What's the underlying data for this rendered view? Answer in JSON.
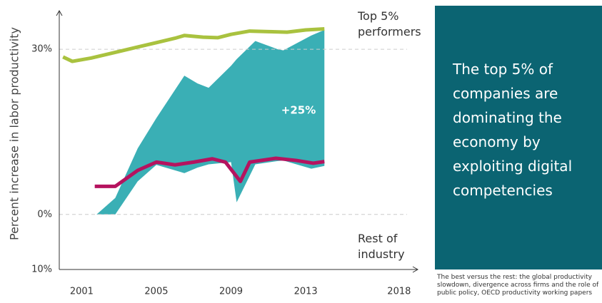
{
  "chart_data": {
    "type": "line",
    "y_label": "Percent increase in labor productivity",
    "xlim": [
      1999.8,
      2019
    ],
    "xticks": [
      2001,
      2005,
      2009,
      2013,
      2018
    ],
    "ylim": [
      -10,
      37
    ],
    "yticks": [
      {
        "value": 30,
        "label": "30%"
      },
      {
        "value": 0,
        "label": "0%"
      },
      {
        "value": -10,
        "label": "10%"
      }
    ],
    "grid": true,
    "series": [
      {
        "name": "Top 5% performers",
        "color": "#a9c23f",
        "x": [
          2000,
          2000.5,
          2001.5,
          2003,
          2004,
          2005,
          2006,
          2006.5,
          2007.5,
          2008.3,
          2009,
          2010,
          2011,
          2012,
          2013,
          2014
        ],
        "values": [
          28.6,
          27.8,
          28.4,
          29.6,
          30.4,
          31.2,
          32,
          32.5,
          32.2,
          32.1,
          32.7,
          33.3,
          33.2,
          33.1,
          33.5,
          33.7
        ]
      },
      {
        "name": "Rest of industry",
        "color": "#b5135f",
        "x": [
          2001.7,
          2002.8,
          2004,
          2005,
          2006,
          2007,
          2008,
          2008.7,
          2009.5,
          2010,
          2011.4,
          2012.5,
          2013.4,
          2014
        ],
        "values": [
          5.1,
          5.1,
          8,
          9.5,
          9,
          9.5,
          10.1,
          9.5,
          6,
          9.5,
          10.2,
          9.8,
          9.3,
          9.6
        ]
      }
    ],
    "area": {
      "color": "#3aafb5",
      "x": [
        2001.8,
        2002.8,
        2004,
        2005,
        2006.5,
        2007.2,
        2007.8,
        2009,
        2009.3,
        2010.3,
        2011.5,
        2011.8,
        2013.3,
        2014
      ],
      "upper": [
        0,
        3,
        12,
        17.5,
        25.2,
        23.8,
        23,
        27,
        28.2,
        31.5,
        30,
        29.8,
        32.5,
        33.5
      ],
      "lower": [
        0,
        0,
        6,
        9,
        7.5,
        8.5,
        9.1,
        9.5,
        2.2,
        9.1,
        9.7,
        9.8,
        8.3,
        8.8
      ]
    },
    "annotation": "+25%"
  },
  "panel": {
    "text": "The top 5% of companies are dominating the economy by exploiting digital competencies",
    "source": "The best versus the rest: the global productivity slowdown, divergence across firms and the role of public policy, OECD productivity working papers"
  }
}
